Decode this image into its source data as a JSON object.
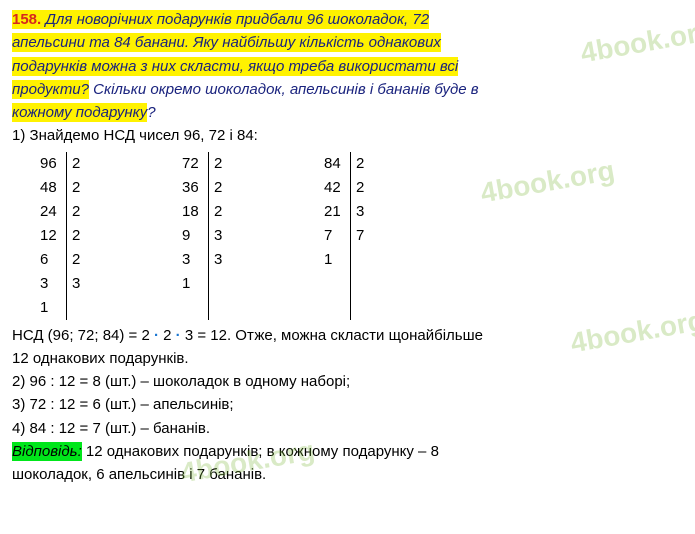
{
  "problem": {
    "number": "158.",
    "line1": "Для новорічних подарунків придбали 96 шоколадок, 72",
    "line2": "апельсини та 84 банани. Яку найбільшу кількість однакових",
    "line3": "подарунків можна з них скласти, якщо треба використати всі",
    "line4_a": "продукти?",
    "line4_b": " Скільки окремо шоколадок, апельсинів і бананів буде в",
    "line5": "кожному подарунку",
    "line5_q": "?"
  },
  "solution": {
    "step1": "1) Знайдемо НСД чисел 96, 72 і 84:",
    "fact96": {
      "left": [
        "96",
        "48",
        "24",
        "12",
        "6",
        "3",
        "1"
      ],
      "right": [
        "2",
        "2",
        "2",
        "2",
        "2",
        "3",
        ""
      ]
    },
    "fact72": {
      "left": [
        "72",
        "36",
        "18",
        "9",
        "3",
        "1",
        ""
      ],
      "right": [
        "2",
        "2",
        "2",
        "3",
        "3",
        "",
        ""
      ]
    },
    "fact84": {
      "left": [
        "84",
        "42",
        "21",
        "7",
        "1",
        "",
        ""
      ],
      "right": [
        "2",
        "2",
        "3",
        "7",
        "",
        "",
        ""
      ]
    },
    "gcd_a": "НСД (96; 72; 84) = 2 ",
    "gcd_b": " 2 ",
    "gcd_c": " 3 = 12. Отже, можна скласти щонайбільше",
    "dot": "·",
    "gcd_cont": "12 однакових подарунків.",
    "step2": "2) 96 : 12 = 8 (шт.) – шоколадок в одному наборі;",
    "step3": "3) 72 : 12 = 6 (шт.) – апельсинів;",
    "step4": "4) 84 : 12 = 7 (шт.) – бананів."
  },
  "answer": {
    "label": "Відповідь:",
    "text_a": " 12 однакових подарунків; в кожному подарунку – 8",
    "text_b": "шоколадок, 6 апельсинів і 7 бананів."
  },
  "watermark": "4book.org"
}
